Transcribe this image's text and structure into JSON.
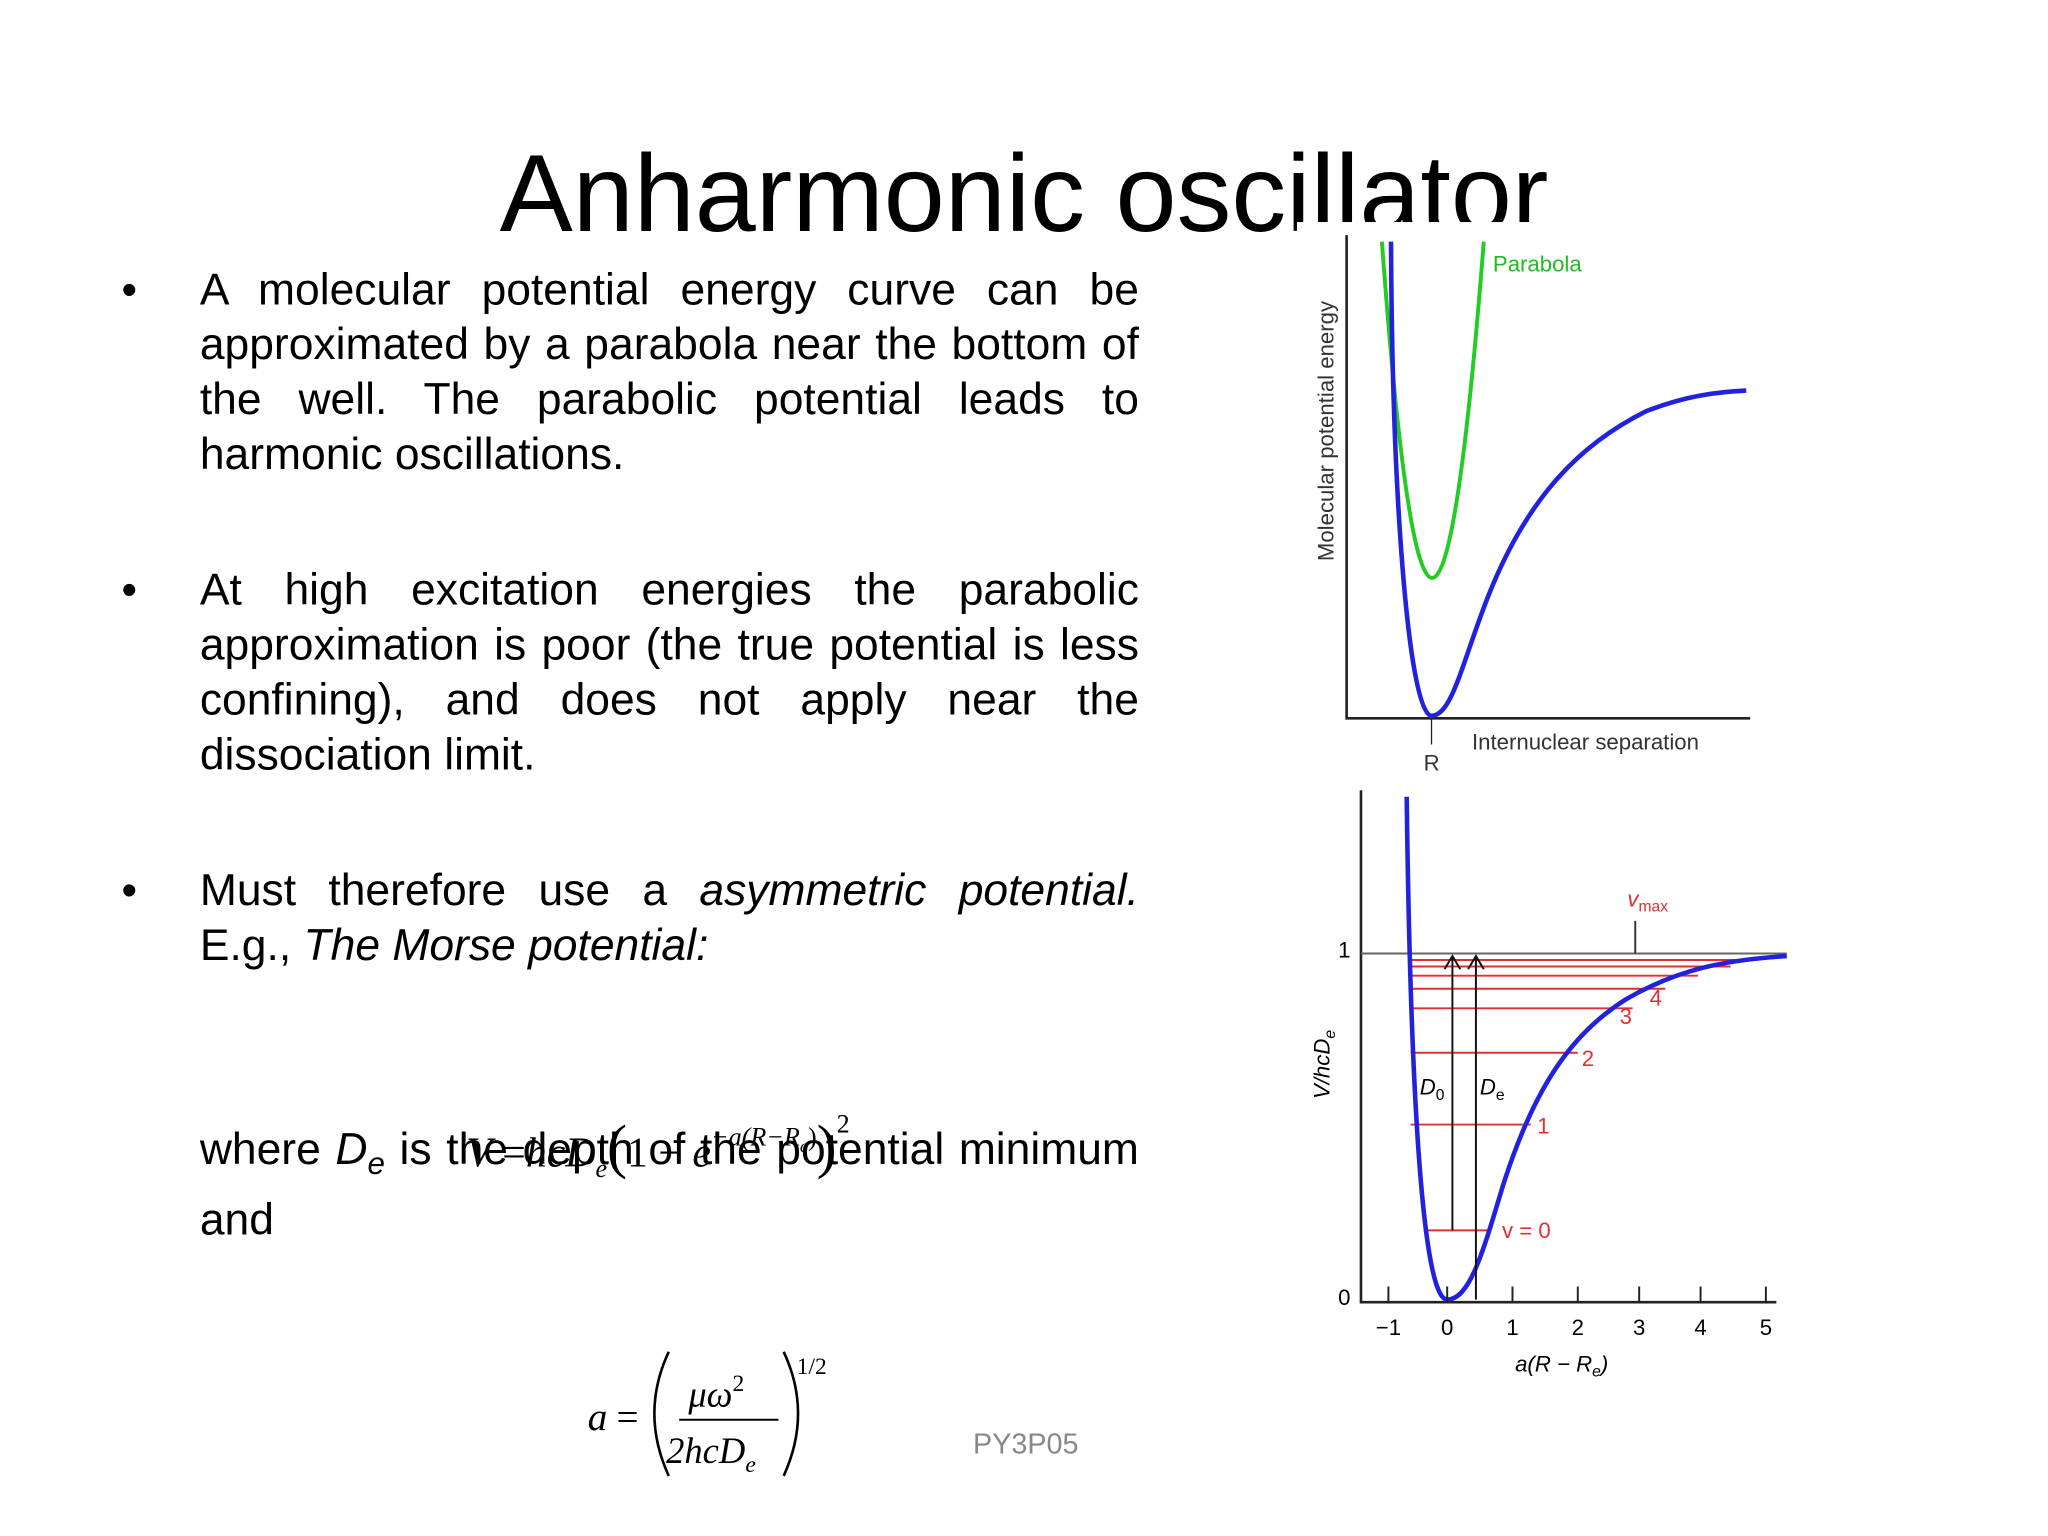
{
  "title": "Anharmonic oscillator",
  "bullets": [
    {
      "marker": "•",
      "parts": [
        "A molecular potential energy curve can be approximated by a parabola near the bottom of the well. The parabolic potential leads to harmonic oscillations."
      ]
    },
    {
      "marker": "•",
      "parts": [
        "At high excitation energies the parabolic approximation is poor (the true potential is less confining), and does not apply near the dissociation limit."
      ]
    },
    {
      "marker": "•",
      "parts": [
        "Must therefore use a ",
        "asymmetric potential.",
        " E.g., ",
        "The Morse potential:"
      ]
    }
  ],
  "where": [
    "where ",
    "D",
    "e",
    " is the depth of the potential minimum and"
  ],
  "equation_1": [
    "V",
    " =",
    "hcD",
    "e",
    "(",
    "1 − ",
    "e",
    "−a(R−R",
    "e",
    ")",
    ")",
    "2"
  ],
  "equation_2": [
    "a",
    "=",
    "μω",
    "2",
    "2hcD",
    "e",
    "1/2"
  ],
  "footer": "PY3P05",
  "figure_1": {
    "y_label": "Molecular potential energy",
    "x_label": "Internuclear separation",
    "curve_label": "Parabola",
    "min_label": "R"
  },
  "figure_2": {
    "y_label": [
      "V/hcD",
      "e"
    ],
    "x_label": [
      "a(R − R",
      "e",
      ")"
    ],
    "y_tick_labels": [
      "1",
      "0"
    ],
    "x_tick_labels": [
      "−1",
      "0",
      "1",
      "2",
      "3",
      "4",
      "5"
    ],
    "level_labels": [
      "v = 0",
      "1",
      "2",
      "3",
      "4"
    ],
    "vmax_label": [
      "v",
      "max"
    ],
    "d0_label": [
      "D",
      "0"
    ],
    "de_label": [
      "D",
      "e"
    ]
  }
}
